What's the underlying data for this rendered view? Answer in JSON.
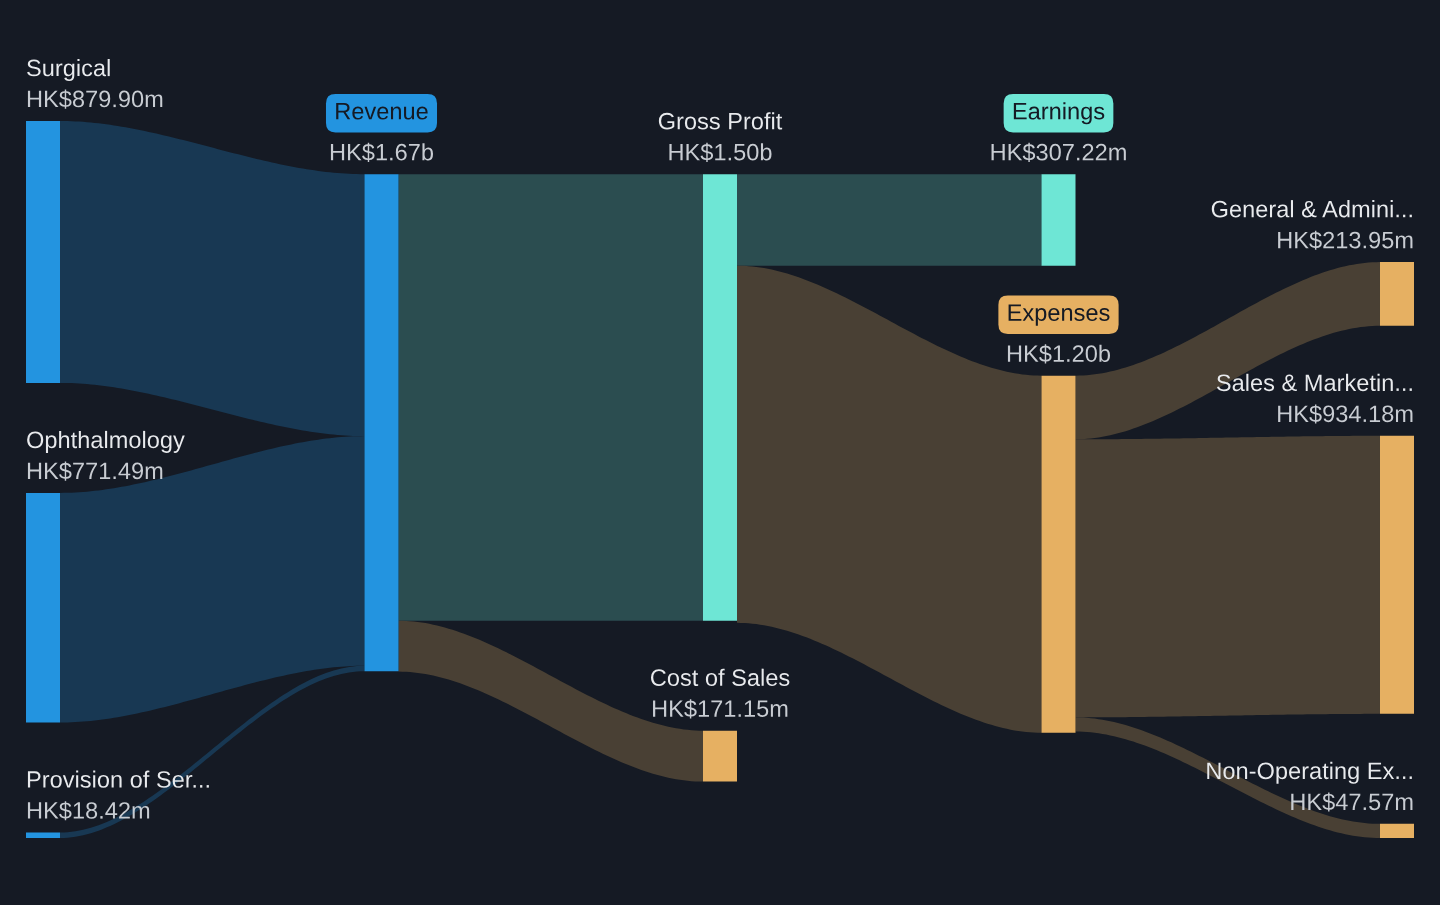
{
  "chart_data": {
    "type": "other",
    "categories": [
      "Surgical",
      "Ophthalmology",
      "Provision of Ser...",
      "Revenue",
      "Gross Profit",
      "Cost of Sales",
      "Earnings",
      "Expenses",
      "General & Admini...",
      "Sales & Marketin...",
      "Non-Operating Ex..."
    ],
    "values": [
      879900000,
      771490000,
      18420000,
      1670000000,
      1500000000,
      171150000,
      307220000,
      1200000000,
      213950000,
      934180000,
      47570000
    ],
    "value_labels": [
      "HK$879.90m",
      "HK$771.49m",
      "HK$18.42m",
      "HK$1.67b",
      "HK$1.50b",
      "HK$171.15m",
      "HK$307.22m",
      "HK$1.20b",
      "HK$213.95m",
      "HK$934.18m",
      "HK$47.57m"
    ],
    "colors": [
      "#2394e0",
      "#2394e0",
      "#2394e0",
      "#2394e0",
      "#6ee6d5",
      "#e6b062",
      "#6ee6d5",
      "#e6b062",
      "#e6b062",
      "#e6b062",
      "#e6b062"
    ]
  }
}
